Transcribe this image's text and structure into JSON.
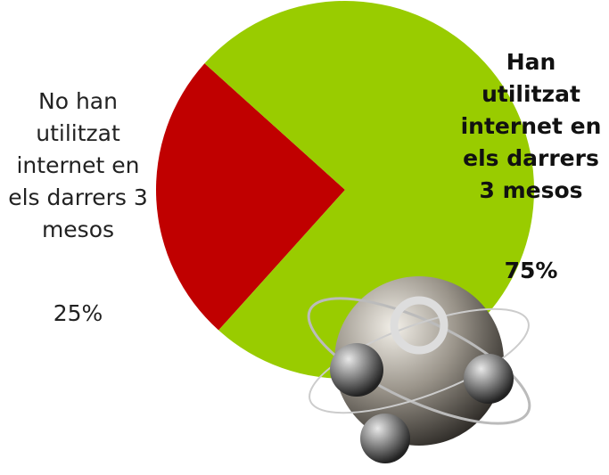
{
  "chart_data": {
    "type": "pie",
    "categories": [
      "No han utilitzat internet en els darrers 3 mesos",
      "Han utilitzat internet en els darrers 3 mesos"
    ],
    "values": [
      25,
      75
    ],
    "value_labels": [
      "25%",
      "75%"
    ],
    "colors": [
      "#c00000",
      "#99cc00"
    ]
  }
}
